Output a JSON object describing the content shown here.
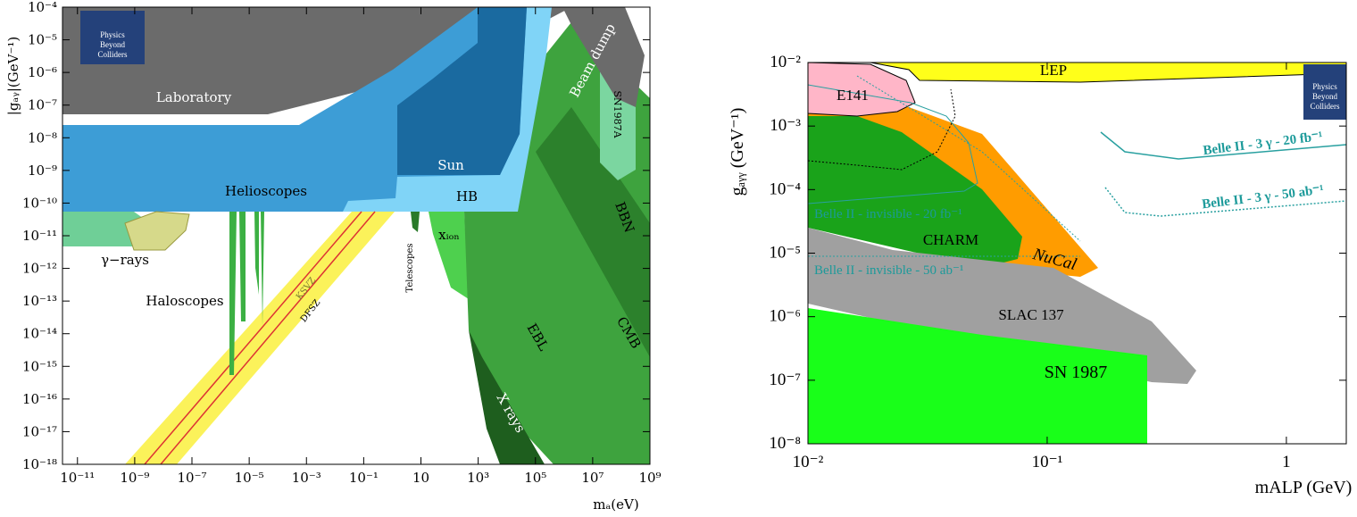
{
  "chart_data": [
    {
      "type": "exclusion",
      "x_label": "mₐ(eV)",
      "y_label": "|gₐᵧ|(GeV⁻¹)",
      "log_x": true,
      "log_y": true,
      "xlim": [
        3e-12,
        1000000000.0
      ],
      "ylim": [
        1e-18,
        0.0001
      ],
      "xticks": [
        {
          "value": 1e-11,
          "label": "10⁻¹¹"
        },
        {
          "value": 1e-09,
          "label": "10⁻⁹"
        },
        {
          "value": 1e-07,
          "label": "10⁻⁷"
        },
        {
          "value": 1e-05,
          "label": "10⁻⁵"
        },
        {
          "value": 0.001,
          "label": "10⁻³"
        },
        {
          "value": 0.1,
          "label": "10⁻¹"
        },
        10,
        {
          "value": 1000,
          "label": "10³"
        },
        {
          "value": 100000,
          "label": "10⁵"
        },
        {
          "value": 10000000,
          "label": "10⁷"
        },
        {
          "value": 1000000000,
          "label": "10⁹"
        }
      ],
      "yticks": [
        {
          "value": 1e-18,
          "label": "10⁻¹⁸"
        },
        {
          "value": 1e-17,
          "label": "10⁻¹⁷"
        },
        {
          "value": 1e-16,
          "label": "10⁻¹⁶"
        },
        {
          "value": 1e-15,
          "label": "10⁻¹⁵"
        },
        {
          "value": 1e-14,
          "label": "10⁻¹⁴"
        },
        {
          "value": 1e-13,
          "label": "10⁻¹³"
        },
        {
          "value": 1e-12,
          "label": "10⁻¹²"
        },
        {
          "value": 1e-11,
          "label": "10⁻¹¹"
        },
        {
          "value": 1e-10,
          "label": "10⁻¹⁰"
        },
        {
          "value": 1e-09,
          "label": "10⁻⁹"
        },
        {
          "value": 1e-08,
          "label": "10⁻⁸"
        },
        {
          "value": 1e-07,
          "label": "10⁻⁷"
        },
        {
          "value": 1e-06,
          "label": "10⁻⁶"
        },
        {
          "value": 1e-05,
          "label": "10⁻⁵"
        },
        {
          "value": 0.0001,
          "label": "10⁻⁴"
        }
      ],
      "annotations": [
        "Laboratory",
        "Helioscopes",
        "Sun",
        "HB",
        "Beam dump",
        "SN1987A",
        "BBN",
        "γ−rays",
        "Haloscopes",
        "Telescopes",
        "KSVZ",
        "DFSZ",
        "xᵢₒₙ",
        "EBL",
        "CMB",
        "X rays"
      ],
      "logo": [
        "Physics",
        "Beyond",
        "Colliders"
      ]
    },
    {
      "type": "exclusion",
      "x_label": "mALP (GeV)",
      "y_label": "gₐᵧᵧ (GeV⁻¹)",
      "log_x": true,
      "log_y": true,
      "xlim": [
        0.01,
        1.78
      ],
      "ylim": [
        1e-08,
        0.01
      ],
      "xticks": [
        {
          "value": 0.01,
          "label": "10⁻²"
        },
        {
          "value": 0.1,
          "label": "10⁻¹"
        },
        1
      ],
      "yticks": [
        {
          "value": 1e-08,
          "label": "10⁻⁸"
        },
        {
          "value": 1e-07,
          "label": "10⁻⁷"
        },
        {
          "value": 1e-06,
          "label": "10⁻⁶"
        },
        {
          "value": 1e-05,
          "label": "10⁻⁵"
        },
        {
          "value": 0.0001,
          "label": "10⁻⁴"
        },
        {
          "value": 0.001,
          "label": "10⁻³"
        },
        {
          "value": 0.01,
          "label": "10⁻²"
        }
      ],
      "annotations": [
        "LEP",
        "E141",
        "Belle II - 3 γ - 20 fb⁻¹",
        "Belle II - 3 γ - 50 ab⁻¹",
        "Belle II - invisible - 20 fb⁻¹",
        "Belle II - invisible - 50 ab⁻¹",
        "CHARM",
        "NuCal",
        "SLAC 137",
        "SN 1987"
      ],
      "logo": [
        "Physics",
        "Beyond",
        "Colliders"
      ]
    }
  ]
}
